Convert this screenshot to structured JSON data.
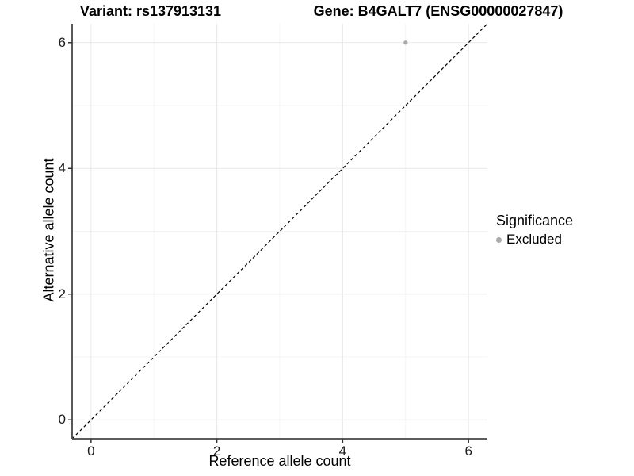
{
  "titles": {
    "variant": "Variant: rs137913131",
    "gene": "Gene: B4GALT7 (ENSG00000027847)"
  },
  "legend": {
    "title": "Significance",
    "items": [
      {
        "label": "Excluded",
        "color": "#aaaaaa"
      }
    ]
  },
  "colors": {
    "background": "#ffffff",
    "grid_major": "#e8e8e8",
    "grid_minor": "#f4f4f4",
    "axis_line": "#454545",
    "tick_mark": "#333333",
    "tick_text": "#1a1a1a",
    "point": "#aaaaaa",
    "reference_line": "#000000"
  },
  "chart_data": {
    "type": "scatter",
    "title": "Variant: rs137913131 | Gene: B4GALT7 (ENSG00000027847)",
    "xlabel": "Reference allele count",
    "ylabel": "Alternative allele count",
    "xlim": [
      -0.3,
      6.3
    ],
    "ylim": [
      -0.3,
      6.3
    ],
    "x_ticks": [
      0,
      2,
      4,
      6
    ],
    "y_ticks": [
      0,
      2,
      4,
      6
    ],
    "x_minor_ticks": [
      1,
      3,
      5
    ],
    "y_minor_ticks": [
      1,
      3,
      5
    ],
    "grid": true,
    "legend_position": "right",
    "series": [
      {
        "name": "Excluded",
        "color": "#aaaaaa",
        "points": [
          {
            "x": 5,
            "y": 6
          }
        ]
      }
    ],
    "reference_line": {
      "type": "identity",
      "style": "dashed",
      "color": "#000000",
      "dash": "4 3"
    }
  }
}
